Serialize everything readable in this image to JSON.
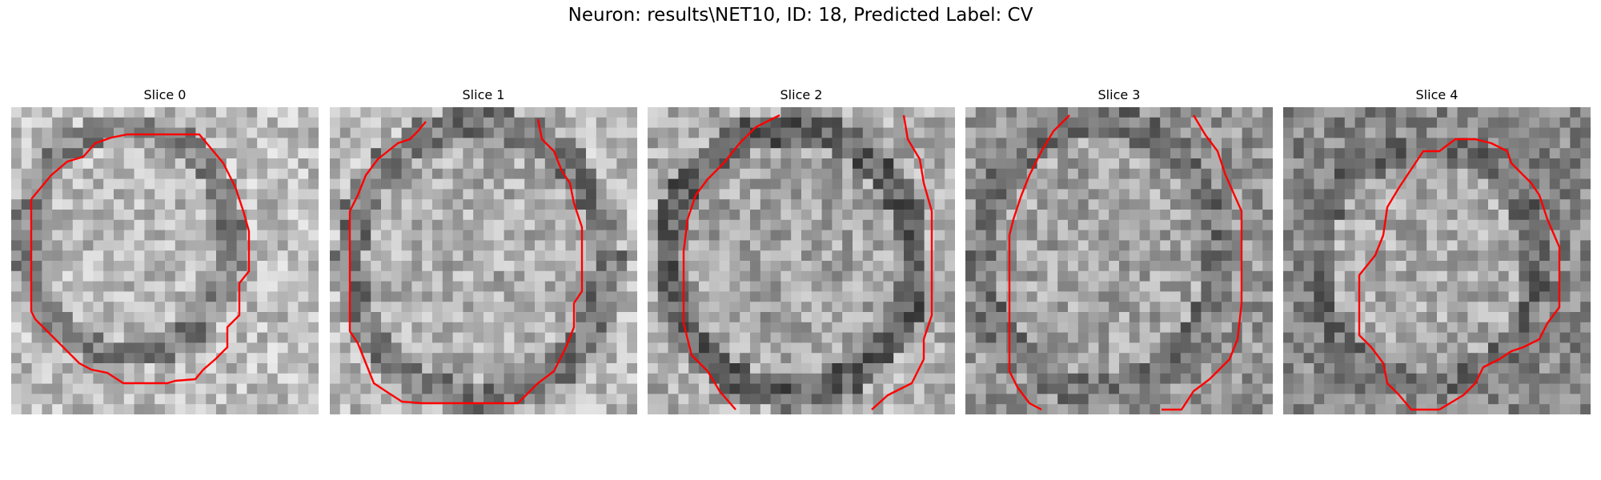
{
  "figure": {
    "title": "Neuron: results\\NET10, ID: 18, Predicted Label: CV"
  },
  "slices": [
    {
      "label": "Slice 0"
    },
    {
      "label": "Slice 1"
    },
    {
      "label": "Slice 2"
    },
    {
      "label": "Slice 3"
    },
    {
      "label": "Slice 4"
    }
  ],
  "colors": {
    "contour": "#ff0000",
    "background": "#ffffff"
  }
}
